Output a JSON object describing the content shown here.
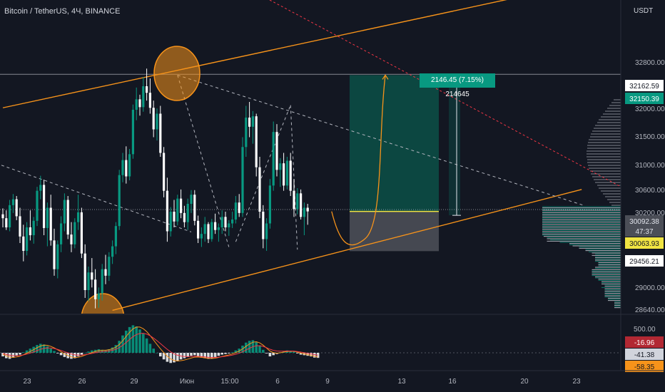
{
  "header": {
    "symbol": "Bitcoin / TetherUS, 4Ч, BINANCE",
    "currency": "USDT"
  },
  "annotation": {
    "measure": "2146.45 (7.15%) 214645"
  },
  "colors": {
    "background": "#131722",
    "up": "#089981",
    "down": "#ffffff",
    "trendline": "#f7931a",
    "dashed": "#b2b5be",
    "red_dashed": "#f23645",
    "target_zone": "#0c4a43",
    "stop_zone": "#4b4e57"
  },
  "chart_data": {
    "type": "candlestick",
    "title": "Bitcoin / TetherUS, 4Ч, BINANCE",
    "ylim": [
      28500,
      33300
    ],
    "price_axis": {
      "ticks": [
        "32800.00",
        "32000.00",
        "31500.00",
        "31000.00",
        "30600.00",
        "30200.00",
        "29000.00",
        "28640.00"
      ],
      "labels": [
        {
          "text": "32162.59",
          "value": 32162.59,
          "style": "white"
        },
        {
          "text": "32150.39",
          "value": 32150.39,
          "style": "teal"
        },
        {
          "text": "30092.38",
          "value": 30092.38,
          "style": "gray"
        },
        {
          "text": "47:37",
          "value": 30010,
          "style": "gray"
        },
        {
          "text": "30063.93",
          "value": 29860,
          "style": "yellow"
        },
        {
          "text": "29456.21",
          "value": 29456.21,
          "style": "white"
        }
      ]
    },
    "time_axis": [
      "23",
      "26",
      "29",
      "Июн",
      "15:00",
      "6",
      "9",
      "13",
      "16",
      "20",
      "23"
    ],
    "candles": [
      [
        30020,
        30110,
        29820,
        29960
      ],
      [
        29960,
        30080,
        29780,
        29820
      ],
      [
        29820,
        30240,
        29760,
        30160
      ],
      [
        30160,
        30330,
        30040,
        30250
      ],
      [
        30250,
        30300,
        29930,
        29990
      ],
      [
        29990,
        30120,
        29580,
        29680
      ],
      [
        29680,
        29860,
        29300,
        29460
      ],
      [
        29460,
        29900,
        29390,
        29820
      ],
      [
        29820,
        30080,
        29620,
        29700
      ],
      [
        29700,
        29980,
        29570,
        29920
      ],
      [
        29920,
        30440,
        29840,
        30380
      ],
      [
        30380,
        30610,
        30250,
        30470
      ],
      [
        30470,
        30550,
        29700,
        29810
      ],
      [
        29810,
        30200,
        29530,
        30120
      ],
      [
        30120,
        30320,
        29540,
        29620
      ],
      [
        29620,
        29800,
        29080,
        29180
      ],
      [
        29180,
        29620,
        29040,
        29560
      ],
      [
        29560,
        29990,
        29440,
        29880
      ],
      [
        29880,
        30340,
        29760,
        30240
      ],
      [
        30240,
        30300,
        29640,
        29710
      ],
      [
        29710,
        29900,
        29440,
        29560
      ],
      [
        29560,
        29960,
        29500,
        29900
      ],
      [
        29900,
        30320,
        29780,
        30050
      ],
      [
        30050,
        30120,
        29350,
        29420
      ],
      [
        29420,
        29560,
        28740,
        28860
      ],
      [
        28860,
        29220,
        28690,
        29130
      ],
      [
        29130,
        29350,
        28900,
        29020
      ],
      [
        29020,
        29180,
        28580,
        28720
      ],
      [
        28720,
        28900,
        28590,
        28810
      ],
      [
        28810,
        29260,
        28700,
        29180
      ],
      [
        29180,
        29400,
        28950,
        29080
      ],
      [
        29080,
        29440,
        29000,
        29370
      ],
      [
        29370,
        29620,
        29260,
        29530
      ],
      [
        29530,
        29900,
        29410,
        29840
      ],
      [
        29840,
        30700,
        29780,
        30620
      ],
      [
        30620,
        30960,
        30510,
        30850
      ],
      [
        30850,
        31060,
        30490,
        30600
      ],
      [
        30600,
        31020,
        30540,
        30940
      ],
      [
        30940,
        31700,
        30870,
        31620
      ],
      [
        31620,
        31960,
        31460,
        31780
      ],
      [
        31780,
        31850,
        31530,
        31660
      ],
      [
        31660,
        32120,
        31590,
        31980
      ],
      [
        31980,
        32250,
        31760,
        31880
      ],
      [
        31880,
        32100,
        31560,
        31650
      ],
      [
        31650,
        31760,
        31200,
        31320
      ],
      [
        31320,
        31640,
        31150,
        31560
      ],
      [
        31560,
        31680,
        30900,
        30960
      ],
      [
        30960,
        31050,
        30280,
        30380
      ],
      [
        30380,
        30580,
        29600,
        29760
      ],
      [
        29760,
        30130,
        29680,
        30060
      ],
      [
        30060,
        30240,
        29820,
        29910
      ],
      [
        29910,
        30320,
        29850,
        30260
      ],
      [
        30260,
        30400,
        29960,
        30040
      ],
      [
        30040,
        30150,
        29820,
        29900
      ],
      [
        29900,
        30260,
        29780,
        30180
      ],
      [
        30180,
        30390,
        30040,
        30320
      ],
      [
        30320,
        30390,
        29850,
        29920
      ],
      [
        29920,
        30000,
        29580,
        29650
      ],
      [
        29650,
        29820,
        29520,
        29720
      ],
      [
        29720,
        29980,
        29600,
        29870
      ],
      [
        29870,
        29900,
        29580,
        29640
      ],
      [
        29640,
        29950,
        29600,
        29900
      ],
      [
        29900,
        30030,
        29720,
        29780
      ],
      [
        29780,
        29880,
        29600,
        29820
      ],
      [
        29820,
        30080,
        29720,
        29980
      ],
      [
        29980,
        30060,
        29760,
        29820
      ],
      [
        29820,
        29930,
        29690,
        29880
      ],
      [
        29880,
        30060,
        29810,
        29940
      ],
      [
        29940,
        30300,
        29880,
        30200
      ],
      [
        30200,
        30330,
        29980,
        30040
      ],
      [
        30040,
        31200,
        29980,
        31050
      ],
      [
        31050,
        31680,
        30900,
        31500
      ],
      [
        31500,
        31740,
        31200,
        31360
      ],
      [
        31360,
        31600,
        31100,
        31520
      ],
      [
        31520,
        31560,
        30600,
        30740
      ],
      [
        30740,
        30900,
        29960,
        30060
      ],
      [
        30060,
        30160,
        29500,
        29640
      ],
      [
        29640,
        29960,
        29460,
        29880
      ],
      [
        29880,
        30560,
        29800,
        30460
      ],
      [
        30460,
        31440,
        30380,
        31280
      ],
      [
        31280,
        31400,
        30600,
        30700
      ],
      [
        30700,
        30880,
        30440,
        30800
      ],
      [
        30800,
        30960,
        30380,
        30460
      ],
      [
        30460,
        30900,
        30400,
        30840
      ],
      [
        30840,
        30960,
        30300,
        30380
      ],
      [
        30380,
        30560,
        29980,
        30100
      ],
      [
        30100,
        30420,
        30020,
        30340
      ],
      [
        30340,
        30400,
        29940,
        29980
      ],
      [
        29980,
        30200,
        29700,
        30120
      ],
      [
        30120,
        30180,
        29860,
        30063.93
      ]
    ],
    "trendlines": [
      {
        "name": "upper-channel",
        "from": [
          0,
          31650
        ],
        "to": [
          151,
          33350
        ]
      },
      {
        "name": "lower-channel",
        "from": [
          32,
          28550
        ],
        "to": [
          169,
          30400
        ]
      },
      {
        "name": "descending-resistance",
        "from": [
          51,
          32150
        ],
        "to": [
          170,
          30150
        ]
      },
      {
        "name": "descending-support",
        "from": [
          -2,
          30800
        ],
        "to": [
          55,
          29750
        ]
      }
    ],
    "position": {
      "entry": 30063.93,
      "target": 32150.39,
      "stop": 29456.21,
      "measure_high": 32150.39,
      "measure_low": 30004
    },
    "histogram": [
      -12,
      -18,
      -20,
      -16,
      -10,
      -6,
      2,
      8,
      14,
      20,
      26,
      30,
      28,
      22,
      14,
      6,
      -2,
      -8,
      -14,
      -18,
      -20,
      -18,
      -12,
      -6,
      0,
      4,
      8,
      10,
      12,
      10,
      8,
      12,
      18,
      26,
      40,
      58,
      74,
      86,
      92,
      88,
      78,
      64,
      48,
      30,
      14,
      0,
      -12,
      -22,
      -30,
      -34,
      -32,
      -28,
      -22,
      -18,
      -14,
      -10,
      -8,
      -12,
      -16,
      -18,
      -20,
      -18,
      -14,
      -10,
      -6,
      -4,
      -2,
      2,
      8,
      14,
      24,
      34,
      40,
      42,
      36,
      24,
      10,
      -2,
      -12,
      -8,
      -4,
      2,
      6,
      8,
      6,
      4,
      -2,
      -6,
      -8,
      -10,
      -12,
      -16,
      -17
    ],
    "oscillator_axis": {
      "ticks": [
        "500.00"
      ],
      "labels": [
        {
          "text": "-16.96",
          "style": "red"
        },
        {
          "text": "-41.38",
          "style": "gray"
        },
        {
          "text": "-58.35",
          "style": "orange"
        }
      ]
    }
  }
}
